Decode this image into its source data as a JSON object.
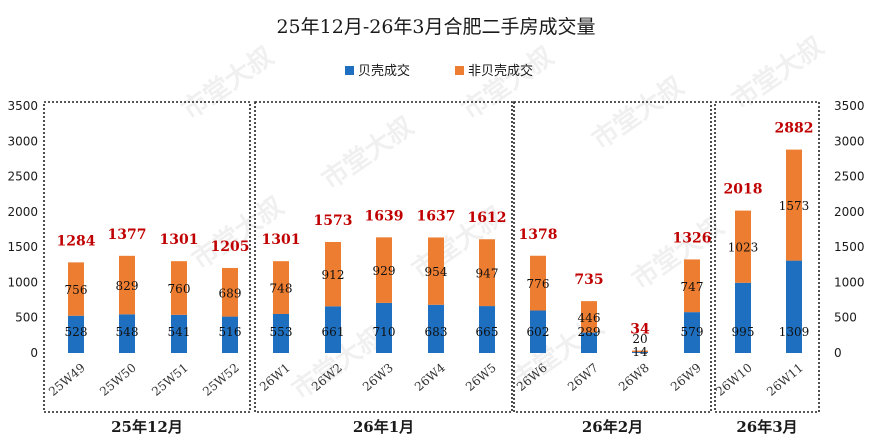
{
  "chart_data": {
    "type": "bar",
    "stacked": true,
    "title": "25年12月-26年3月合肥二手房成交量",
    "categories": [
      "25W49",
      "25W50",
      "25W51",
      "25W52",
      "26W1",
      "26W2",
      "26W3",
      "26W4",
      "26W5",
      "26W6",
      "26W7",
      "26W8",
      "26W9",
      "26W10",
      "26W11"
    ],
    "series": [
      {
        "name": "贝壳成交",
        "color": "#1f6fc0",
        "values": [
          528,
          548,
          541,
          516,
          553,
          661,
          710,
          683,
          665,
          602,
          289,
          14,
          579,
          995,
          1309
        ]
      },
      {
        "name": "非贝壳成交",
        "color": "#ed7d31",
        "values": [
          756,
          829,
          760,
          689,
          748,
          912,
          929,
          954,
          947,
          776,
          446,
          20,
          747,
          1023,
          1573
        ]
      }
    ],
    "totals": [
      1284,
      1377,
      1301,
      1205,
      1301,
      1573,
      1639,
      1637,
      1612,
      1378,
      735,
      34,
      1326,
      2018,
      2882
    ],
    "ylim": [
      0,
      3500
    ],
    "yticks": [
      0,
      500,
      1000,
      1500,
      2000,
      2500,
      3000,
      3500
    ],
    "grid": false,
    "legend_position": "top",
    "groups": [
      {
        "label": "25年12月",
        "start": 0,
        "end": 3
      },
      {
        "label": "26年1月",
        "start": 4,
        "end": 8
      },
      {
        "label": "26年2月",
        "start": 9,
        "end": 12
      },
      {
        "label": "26年3月",
        "start": 13,
        "end": 14
      }
    ],
    "total_label_color": "#c00000"
  },
  "watermark": "市堂大叔"
}
